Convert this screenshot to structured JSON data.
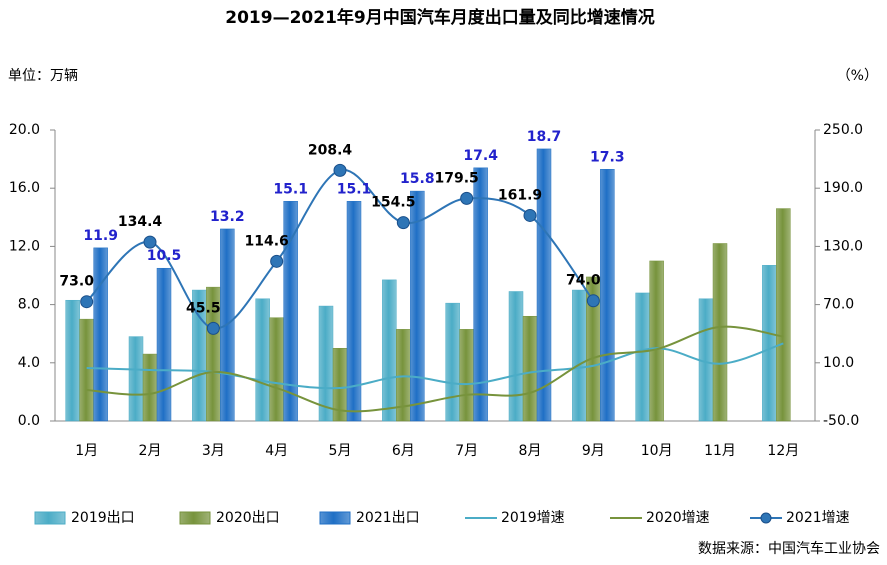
{
  "chart_data": {
    "type": "bar-line",
    "title": "2019—2021年9月中国汽车月度出口量及同比增速情况",
    "y_label": "单位：万辆",
    "y2_label": "（%）",
    "source": "数据来源：中国汽车工业协会",
    "categories": [
      "1月",
      "2月",
      "3月",
      "4月",
      "5月",
      "6月",
      "7月",
      "8月",
      "9月",
      "10月",
      "11月",
      "12月"
    ],
    "ylim": [
      0,
      20
    ],
    "yticks": [
      {
        "value": 0,
        "label": "0.0"
      },
      {
        "value": 4,
        "label": "4.0"
      },
      {
        "value": 8,
        "label": "8.0"
      },
      {
        "value": 12,
        "label": "12.0"
      },
      {
        "value": 16,
        "label": "16.0"
      },
      {
        "value": 20,
        "label": "20.0"
      }
    ],
    "y2lim": [
      -50,
      250
    ],
    "y2ticks": [
      {
        "value": -50,
        "label": "-50.0"
      },
      {
        "value": 10,
        "label": "10.0"
      },
      {
        "value": 70,
        "label": "70.0"
      },
      {
        "value": 130,
        "label": "130.0"
      },
      {
        "value": 190,
        "label": "190.0"
      },
      {
        "value": 250,
        "label": "250.0"
      }
    ],
    "series": [
      {
        "name": "2019出口",
        "kind": "bar",
        "color": "#4bacc6",
        "values": [
          8.3,
          5.8,
          9.0,
          8.4,
          7.9,
          9.7,
          8.1,
          8.9,
          9.0,
          8.8,
          8.4,
          10.7
        ]
      },
      {
        "name": "2020出口",
        "kind": "bar",
        "color": "#77933c",
        "values": [
          7.0,
          4.6,
          9.2,
          7.1,
          5.0,
          6.3,
          6.3,
          7.2,
          9.9,
          11.0,
          12.2,
          14.6
        ]
      },
      {
        "name": "2021出口",
        "kind": "bar",
        "color": "#1f6fc5",
        "values": [
          11.9,
          10.5,
          13.2,
          15.1,
          15.1,
          15.8,
          17.4,
          18.7,
          17.3,
          null,
          null,
          null
        ],
        "labels_shown": true
      },
      {
        "name": "2019增速",
        "kind": "line",
        "axis": "y2",
        "color": "#4bacc6",
        "values": [
          4.6,
          2.6,
          0.5,
          -11,
          -16,
          -4,
          -12,
          0,
          7,
          25,
          9,
          30
        ]
      },
      {
        "name": "2020增速",
        "kind": "line",
        "axis": "y2",
        "color": "#77933c",
        "values": [
          -18,
          -22,
          0.5,
          -16,
          -39,
          -35,
          -23,
          -21,
          15,
          24,
          47,
          37
        ]
      },
      {
        "name": "2021增速",
        "kind": "line",
        "axis": "y2",
        "color": "#2e75b6",
        "markers": true,
        "values": [
          73.0,
          134.4,
          45.5,
          114.6,
          208.4,
          154.5,
          179.5,
          161.9,
          74.0,
          null,
          null,
          null
        ],
        "value_labels": [
          "73.0",
          "134.4",
          "45.5",
          "114.6",
          "208.4",
          "154.5",
          "179.5",
          "161.9",
          "74.0",
          null,
          null,
          null
        ]
      }
    ]
  }
}
